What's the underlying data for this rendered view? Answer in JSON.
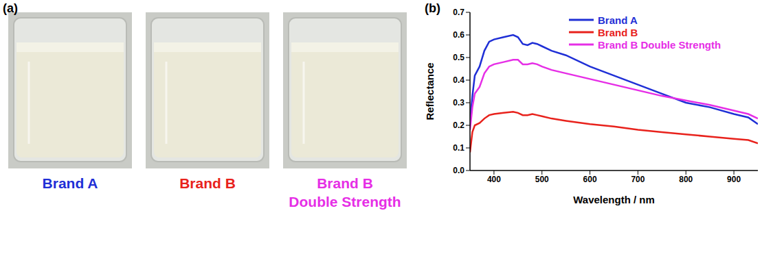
{
  "photos": {
    "panel_label": "(a)",
    "captions": [
      {
        "lines": [
          "Brand A"
        ],
        "color": "#1f2fd6"
      },
      {
        "lines": [
          "Brand B"
        ],
        "color": "#e8221c"
      },
      {
        "lines": [
          "Brand B",
          "Double Strength"
        ],
        "color": "#e62ee6"
      }
    ]
  },
  "chart_data": {
    "type": "line",
    "panel_label": "(b)",
    "x_label": "Wavelength / nm",
    "y_label": "Reflectance",
    "legend": "top right",
    "xlim": [
      350,
      950
    ],
    "xticks": [
      400,
      500,
      600,
      700,
      800,
      900
    ],
    "ylim": [
      0,
      0.7
    ],
    "yticks": [
      {
        "value": 0,
        "label": "0.0"
      },
      0.1,
      0.2,
      0.3,
      0.4,
      0.5,
      0.6,
      0.7
    ],
    "x": [
      350,
      355,
      360,
      370,
      380,
      390,
      400,
      420,
      440,
      450,
      460,
      470,
      480,
      490,
      500,
      520,
      550,
      600,
      650,
      700,
      750,
      800,
      850,
      900,
      930,
      950
    ],
    "series": [
      {
        "name": "Brand A",
        "color": "#1f2fd6",
        "values": [
          0.21,
          0.33,
          0.42,
          0.46,
          0.53,
          0.57,
          0.58,
          0.59,
          0.6,
          0.59,
          0.56,
          0.555,
          0.565,
          0.56,
          0.55,
          0.53,
          0.51,
          0.46,
          0.42,
          0.38,
          0.34,
          0.3,
          0.28,
          0.25,
          0.235,
          0.205
        ]
      },
      {
        "name": "Brand B",
        "color": "#e8221c",
        "values": [
          0.08,
          0.17,
          0.2,
          0.21,
          0.23,
          0.245,
          0.25,
          0.255,
          0.26,
          0.255,
          0.245,
          0.245,
          0.25,
          0.245,
          0.24,
          0.23,
          0.22,
          0.205,
          0.195,
          0.18,
          0.17,
          0.16,
          0.15,
          0.14,
          0.135,
          0.12
        ]
      },
      {
        "name": "Brand B Double Strength",
        "color": "#e62ee6",
        "values": [
          0.18,
          0.28,
          0.34,
          0.37,
          0.43,
          0.46,
          0.47,
          0.48,
          0.49,
          0.49,
          0.47,
          0.47,
          0.475,
          0.47,
          0.46,
          0.445,
          0.43,
          0.405,
          0.38,
          0.355,
          0.33,
          0.31,
          0.29,
          0.265,
          0.25,
          0.23
        ]
      }
    ]
  }
}
